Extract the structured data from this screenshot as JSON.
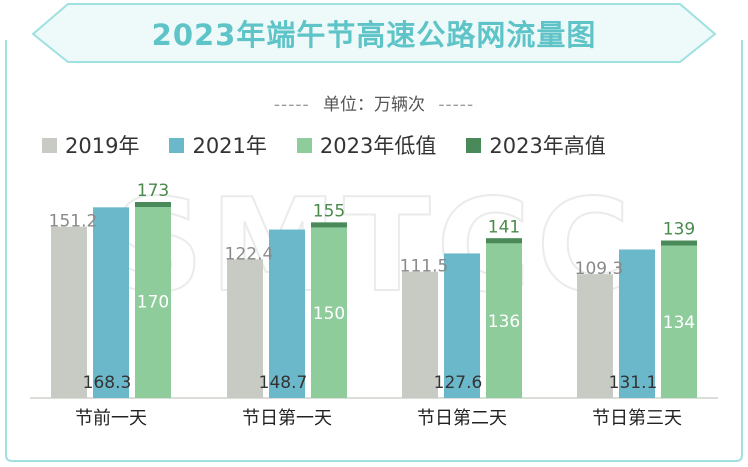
{
  "title": "2023年端午节高速公路网流量图",
  "unit": "单位：万辆次",
  "unit_dashes": "-----",
  "watermark": "SMTCC",
  "colors": {
    "c2019": "#c8cbc3",
    "c2021": "#6cb8cb",
    "c2023low": "#8fcc9c",
    "c2023high": "#4a8a5a",
    "title": "#5ec4c8",
    "label_dark": "#333333",
    "label_light": "#ffffff",
    "label_grey": "#8a8a8a",
    "label_green": "#4a8a4a"
  },
  "chart_data": {
    "type": "bar",
    "title": "2023年端午节高速公路网流量图",
    "ylabel": "单位：万辆次",
    "categories": [
      "节前一天",
      "节日第一天",
      "节日第二天",
      "节日第三天"
    ],
    "series": [
      {
        "name": "2019年",
        "values": [
          151.2,
          122.4,
          111.5,
          109.3
        ]
      },
      {
        "name": "2021年",
        "values": [
          168.3,
          148.7,
          127.6,
          131.1
        ]
      },
      {
        "name": "2023年低值",
        "values": [
          170,
          150,
          136,
          134
        ]
      },
      {
        "name": "2023年高值",
        "values": [
          173,
          155,
          141,
          139
        ]
      }
    ],
    "value_labels": {
      "s2019": [
        "151.2",
        "122.4",
        "111.5",
        "109.3"
      ],
      "s2021": [
        "168.3",
        "148.7",
        "127.6",
        "131.1"
      ],
      "s2023low": [
        "170",
        "150",
        "136",
        "134"
      ],
      "s2023high": [
        "173",
        "155",
        "141",
        "139"
      ]
    },
    "ylim": [
      0,
      173
    ],
    "grid": false,
    "legend": "top"
  }
}
